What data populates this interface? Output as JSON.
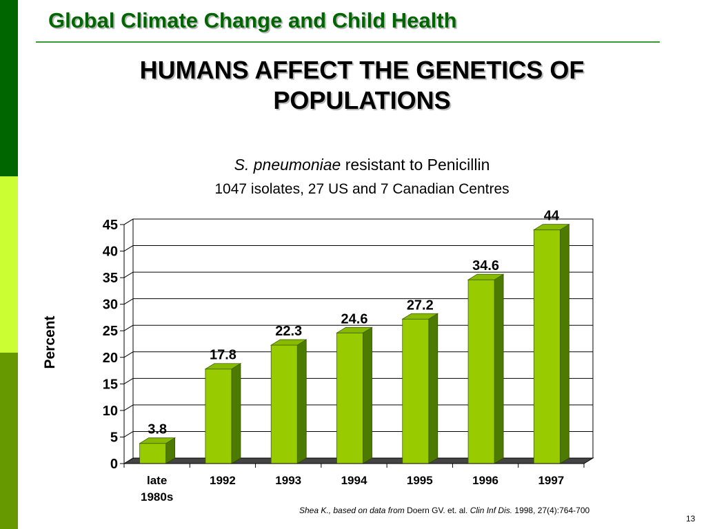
{
  "header": {
    "title": "Global Climate Change and Child Health"
  },
  "slide": {
    "title_line1": "HUMANS AFFECT THE GENETICS OF",
    "title_line2": "POPULATIONS",
    "page_number": "13"
  },
  "chart_subtitle": {
    "species": "S. pneumoniae",
    "rest": " resistant to Penicillin",
    "line2": "1047 isolates, 27 US and 7 Canadian Centres"
  },
  "source": {
    "part1": "Shea K., based on data from ",
    "part2": "Doern GV. et. al.  ",
    "part3": "Clin Inf Dis.",
    "part4": " 1998, 27(4):764-700"
  },
  "colors": {
    "sidebar": [
      "#006600",
      "#ccff33",
      "#669900"
    ],
    "bar_front": "#99cc00",
    "bar_side": "#4d7a00",
    "bar_top": "#88bb00",
    "floor": "#444444",
    "title_green": "#006600"
  },
  "chart_data": {
    "type": "bar",
    "title": "S. pneumoniae resistant to Penicillin",
    "subtitle": "1047 isolates, 27 US and 7 Canadian Centres",
    "categories": [
      [
        "late",
        "1980s"
      ],
      [
        "1992"
      ],
      [
        "1993"
      ],
      [
        "1994"
      ],
      [
        "1995"
      ],
      [
        "1996"
      ],
      [
        "1997"
      ]
    ],
    "values": [
      3.8,
      17.8,
      22.3,
      24.6,
      27.2,
      34.6,
      44
    ],
    "value_labels": [
      "3.8",
      "17.8",
      "22.3",
      "24.6",
      "27.2",
      "34.6",
      "44"
    ],
    "xlabel": "",
    "ylabel": "Percent",
    "ylim": [
      0,
      45
    ],
    "yticks": [
      "0",
      "5",
      "10",
      "15",
      "20",
      "25",
      "30",
      "35",
      "40",
      "45"
    ],
    "grid": true,
    "legend": "none",
    "style": "3d"
  }
}
